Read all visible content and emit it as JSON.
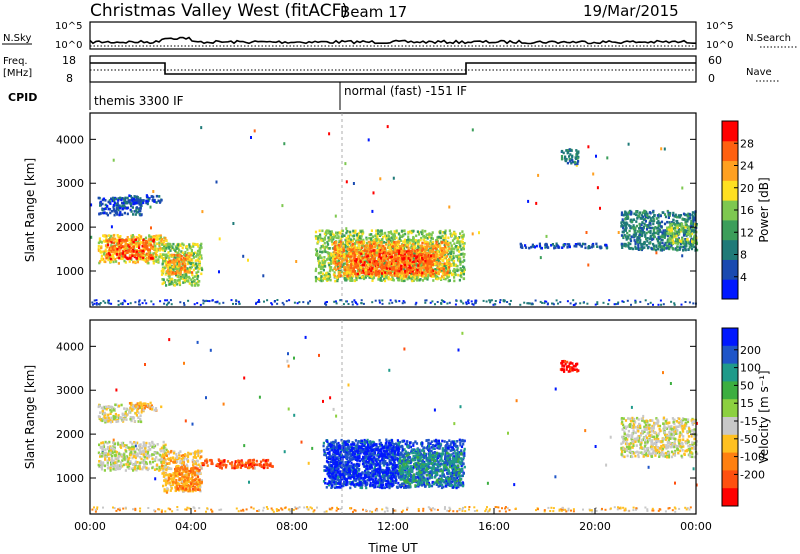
{
  "header": {
    "title": "Christmas Valley West (fitACF)",
    "beam": "Beam 17",
    "date": "19/Mar/2015"
  },
  "top_panels": {
    "nsky_label": "N.Sky",
    "nsky_ticks_left": [
      "10^5",
      "10^0"
    ],
    "nsky_ticks_right": [
      "10^5",
      "10^0"
    ],
    "nsearch_label": "N.Search",
    "freq_label_1": "Freq.",
    "freq_label_2": "[MHz]",
    "freq_ticks": [
      "18",
      "8"
    ],
    "nave_ticks": [
      "60",
      "0"
    ],
    "nave_label": "Nave",
    "cpid_label": "CPID",
    "cpid_mode_1": "themis 3300 IF",
    "cpid_mode_2": "normal (fast) -151 IF"
  },
  "chart_data": [
    {
      "type": "heatmap",
      "name": "power-panel",
      "ylabel": "Slant Range [km]",
      "xlabel": "Time UT",
      "ylim": [
        180,
        4600
      ],
      "xlim_hours": [
        0,
        24
      ],
      "y_ticks": [
        "1000",
        "2000",
        "3000",
        "4000"
      ],
      "colorbar": {
        "label": "Power [dB]",
        "range": [
          0,
          32
        ],
        "ticks": [
          "4",
          "8",
          "12",
          "16",
          "20",
          "24",
          "28"
        ],
        "colors": [
          "#0018ff",
          "#1a4ab0",
          "#1f7a78",
          "#3c9e5a",
          "#7ec850",
          "#ffe020",
          "#ffa020",
          "#ff6010",
          "#ff0000"
        ]
      },
      "regions": [
        {
          "t0": 0.3,
          "t1": 3.0,
          "r0": 1200,
          "r1": 1850,
          "level": 5
        },
        {
          "t0": 0.6,
          "t1": 2.5,
          "r0": 1300,
          "r1": 1750,
          "level": 7
        },
        {
          "t0": 2.8,
          "t1": 4.4,
          "r0": 700,
          "r1": 1650,
          "level": 4
        },
        {
          "t0": 3.0,
          "t1": 4.0,
          "r0": 950,
          "r1": 1400,
          "level": 6
        },
        {
          "t0": 0.3,
          "t1": 2.0,
          "r0": 2300,
          "r1": 2700,
          "level": 1
        },
        {
          "t0": 1.5,
          "t1": 2.8,
          "r0": 2550,
          "r1": 2750,
          "level": 1
        },
        {
          "t0": 8.9,
          "t1": 14.8,
          "r0": 800,
          "r1": 1950,
          "level": 4
        },
        {
          "t0": 9.6,
          "t1": 14.2,
          "r0": 900,
          "r1": 1700,
          "level": 6
        },
        {
          "t0": 10.3,
          "t1": 13.6,
          "r0": 950,
          "r1": 1500,
          "level": 7
        },
        {
          "t0": 21.0,
          "t1": 24.0,
          "r0": 1500,
          "r1": 2400,
          "level": 2
        },
        {
          "t0": 22.8,
          "t1": 24.0,
          "r0": 1650,
          "r1": 2100,
          "level": 4
        },
        {
          "t0": 17.0,
          "t1": 20.5,
          "r0": 1550,
          "r1": 1650,
          "level": 1
        },
        {
          "t0": 18.6,
          "t1": 19.3,
          "r0": 3450,
          "r1": 3800,
          "level": 2
        }
      ]
    },
    {
      "type": "heatmap",
      "name": "velocity-panel",
      "ylabel": "Slant Range [km]",
      "xlabel": "Time UT",
      "ylim": [
        180,
        4600
      ],
      "xlim_hours": [
        0,
        24
      ],
      "y_ticks": [
        "1000",
        "2000",
        "3000",
        "4000"
      ],
      "x_ticks": [
        "00:00",
        "04:00",
        "08:00",
        "12:00",
        "16:00",
        "20:00",
        "00:00"
      ],
      "colorbar": {
        "label": "Velocity [m s⁻¹]",
        "ticks": [
          "200",
          "100",
          "50",
          "15",
          "-15",
          "-50",
          "-100",
          "-200"
        ],
        "colors": [
          "#0018ff",
          "#1f55c8",
          "#1f9a8a",
          "#3cae40",
          "#8cd040",
          "#c8c8c8",
          "#ffc020",
          "#ff8010",
          "#ff5010",
          "#ff0000"
        ]
      },
      "regions": [
        {
          "t0": 0.3,
          "t1": 3.0,
          "r0": 1200,
          "r1": 1850,
          "level": 5
        },
        {
          "t0": 2.8,
          "t1": 4.4,
          "r0": 700,
          "r1": 1650,
          "level": 6
        },
        {
          "t0": 3.3,
          "t1": 4.3,
          "r0": 750,
          "r1": 1300,
          "level": 7
        },
        {
          "t0": 0.3,
          "t1": 2.0,
          "r0": 2300,
          "r1": 2700,
          "level": 5
        },
        {
          "t0": 1.5,
          "t1": 2.8,
          "r0": 2550,
          "r1": 2750,
          "level": 6
        },
        {
          "t0": 9.2,
          "t1": 14.8,
          "r0": 800,
          "r1": 1900,
          "level": 1
        },
        {
          "t0": 9.4,
          "t1": 12.2,
          "r0": 850,
          "r1": 1800,
          "level": 0
        },
        {
          "t0": 12.2,
          "t1": 14.7,
          "r0": 850,
          "r1": 1600,
          "level": 2
        },
        {
          "t0": 21.0,
          "t1": 24.0,
          "r0": 1500,
          "r1": 2400,
          "level": 5
        },
        {
          "t0": 18.6,
          "t1": 19.3,
          "r0": 3450,
          "r1": 3700,
          "level": 9
        },
        {
          "t0": 4.4,
          "t1": 7.2,
          "r0": 1250,
          "r1": 1450,
          "level": 8
        }
      ]
    }
  ]
}
